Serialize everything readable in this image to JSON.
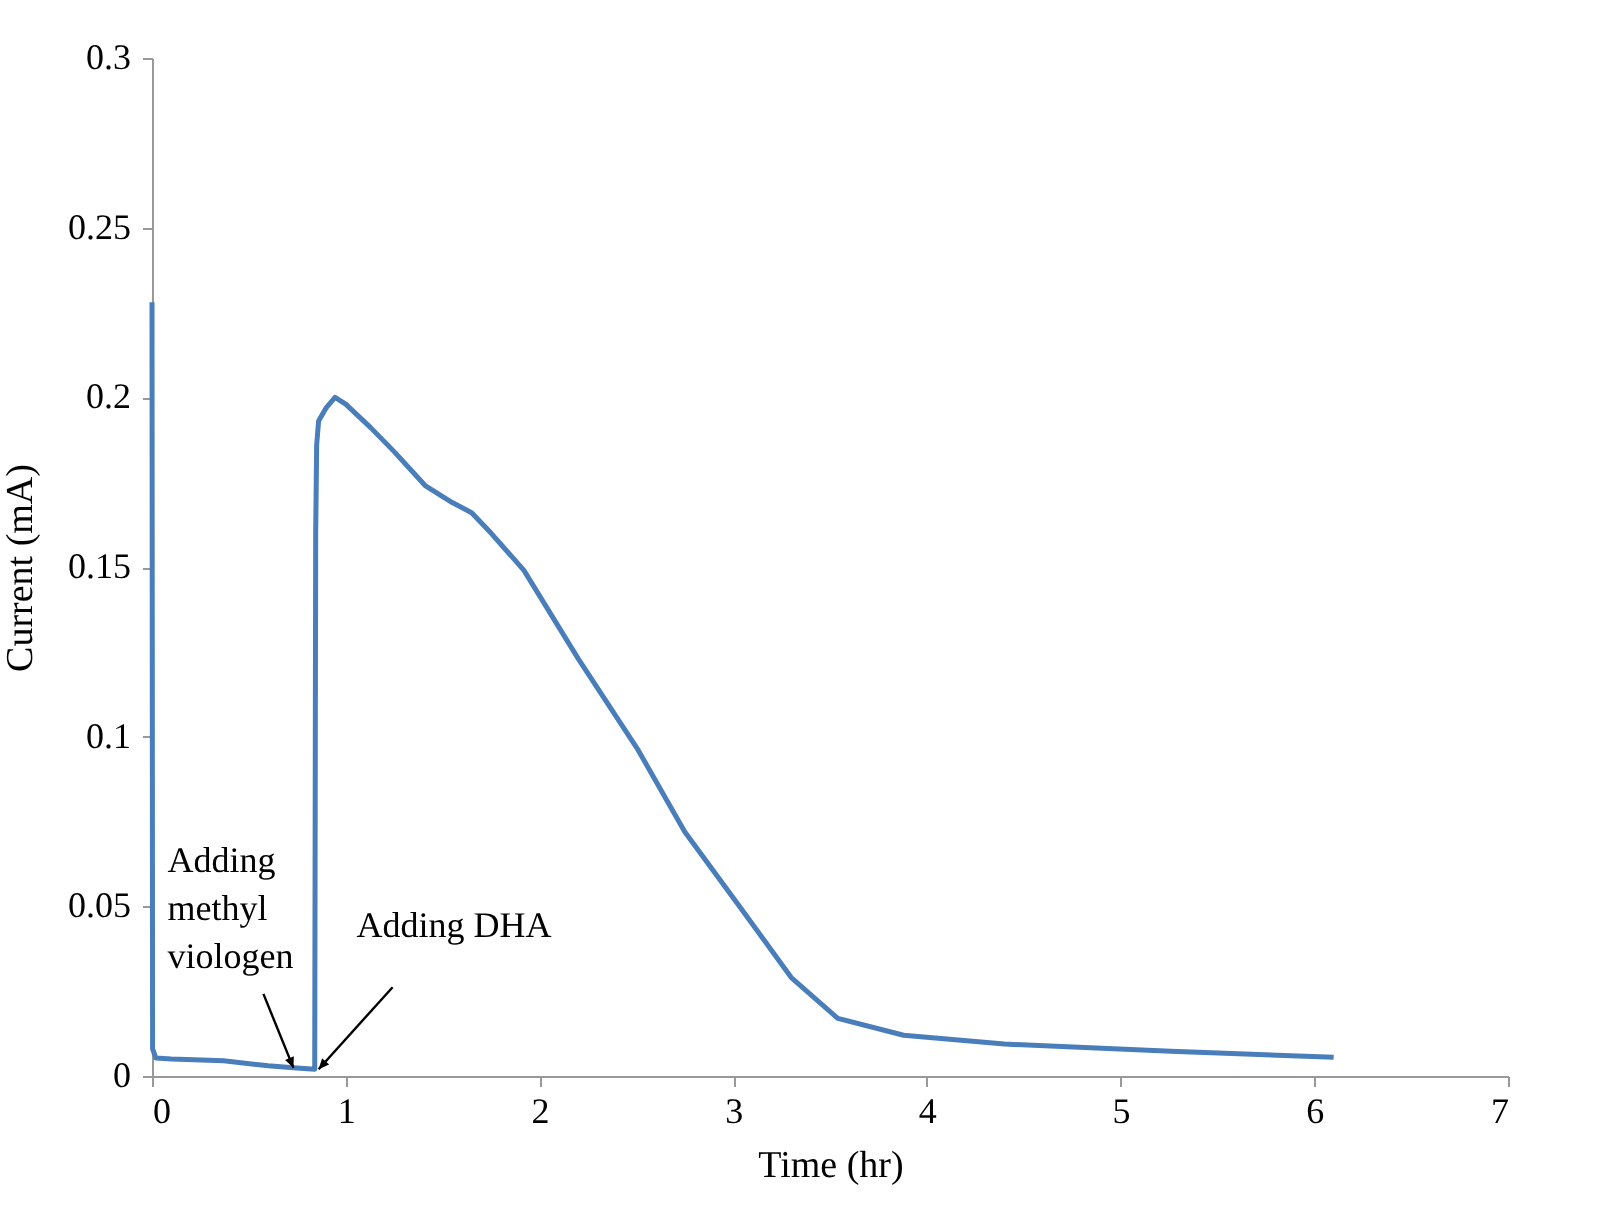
{
  "chart_data": {
    "type": "line",
    "xlabel": "Time (hr)",
    "ylabel": "Current (mA)",
    "xlim": [
      0,
      7
    ],
    "xticks": [
      0,
      1,
      2,
      3,
      4,
      5,
      6,
      7
    ],
    "ylim": [
      0,
      0.3
    ],
    "yticks": [
      0,
      0.05,
      0.1,
      0.15,
      0.2,
      0.25,
      0.3
    ],
    "grid": false,
    "legend": false,
    "marker": "none",
    "line_style": "solid",
    "series": [
      {
        "color": "#4a7ebb",
        "x": [
          0,
          0.003,
          0.02,
          0.1,
          0.37,
          0.6,
          0.73,
          0.84,
          0.845,
          0.85,
          0.86,
          0.9,
          0.945,
          1.0,
          1.13,
          1.25,
          1.41,
          1.55,
          1.65,
          1.75,
          1.92,
          2.2,
          2.51,
          2.75,
          3.02,
          3.3,
          3.54,
          3.88,
          4.4,
          5.26,
          6.1
        ],
        "values": [
          0.228,
          0.008,
          0.0053,
          0.005,
          0.0045,
          0.003,
          0.0024,
          0.002,
          0.16,
          0.186,
          0.193,
          0.197,
          0.2,
          0.198,
          0.191,
          0.184,
          0.174,
          0.169,
          0.166,
          0.16,
          0.149,
          0.123,
          0.096,
          0.072,
          0.051,
          0.029,
          0.017,
          0.012,
          0.0094,
          0.0073,
          0.0055
        ]
      }
    ],
    "annotations": [
      {
        "text": "Adding methyl viologen",
        "x": 0.73,
        "y": 0.0024
      },
      {
        "text": "Adding DHA",
        "x": 0.86,
        "y": 0.002
      }
    ]
  }
}
